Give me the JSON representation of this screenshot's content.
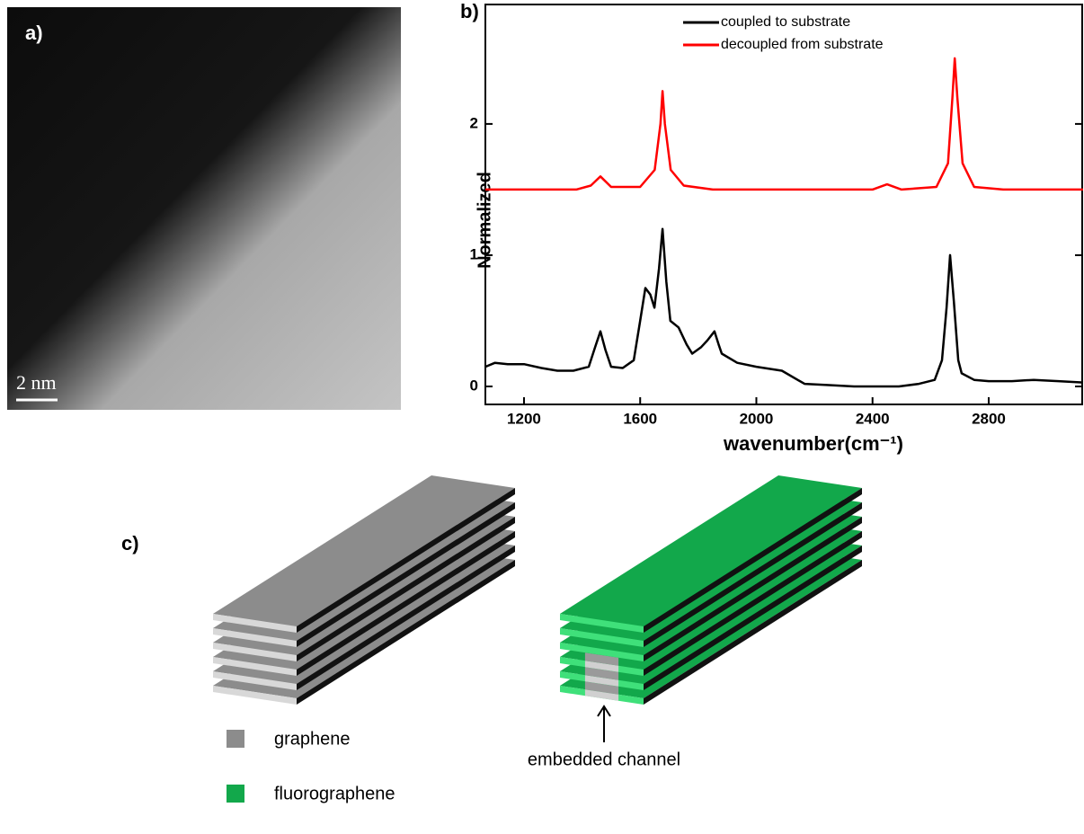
{
  "panel_a": {
    "label": "a)",
    "scale_bar": "2 nm"
  },
  "chart_data": {
    "type": "line",
    "panel_label": "b)",
    "x_label": "wavenumber(cm⁻¹)",
    "y_label": "Normalized",
    "xlim": [
      1067,
      3125
    ],
    "ylim": [
      -0.137,
      2.91
    ],
    "xticks": [
      1200,
      1600,
      2000,
      2400,
      2800
    ],
    "yticks": [
      0,
      1,
      2
    ],
    "series": [
      {
        "name": "coupled to substrate",
        "color": "#000000",
        "x": [
          1067,
          1100,
          1144,
          1200,
          1260,
          1315,
          1370,
          1423,
          1445,
          1463,
          1480,
          1500,
          1540,
          1578,
          1600,
          1618,
          1635,
          1649,
          1665,
          1677,
          1690,
          1704,
          1732,
          1760,
          1779,
          1810,
          1831,
          1856,
          1870,
          1881,
          1934,
          2000,
          2088,
          2166,
          2250,
          2336,
          2420,
          2491,
          2560,
          2614,
          2639,
          2655,
          2667,
          2680,
          2695,
          2707,
          2750,
          2800,
          2880,
          2955,
          3040,
          3125
        ],
        "values": [
          0.15,
          0.18,
          0.17,
          0.17,
          0.14,
          0.12,
          0.12,
          0.15,
          0.3,
          0.42,
          0.28,
          0.15,
          0.14,
          0.2,
          0.5,
          0.75,
          0.7,
          0.6,
          0.9,
          1.2,
          0.8,
          0.5,
          0.45,
          0.32,
          0.25,
          0.3,
          0.35,
          0.42,
          0.32,
          0.25,
          0.18,
          0.15,
          0.12,
          0.02,
          0.01,
          0.0,
          0.0,
          0.0,
          0.02,
          0.05,
          0.2,
          0.6,
          1.0,
          0.65,
          0.2,
          0.1,
          0.05,
          0.04,
          0.04,
          0.05,
          0.04,
          0.03
        ]
      },
      {
        "name": "decoupled from substrate",
        "color": "#ff0000",
        "x": [
          1067,
          1380,
          1430,
          1463,
          1500,
          1600,
          1650,
          1670,
          1677,
          1685,
          1705,
          1750,
          1850,
          2400,
          2450,
          2500,
          2620,
          2660,
          2675,
          2683,
          2692,
          2710,
          2750,
          2850,
          3125
        ],
        "values": [
          1.5,
          1.5,
          1.53,
          1.6,
          1.52,
          1.52,
          1.65,
          2.0,
          2.25,
          2.0,
          1.65,
          1.53,
          1.5,
          1.5,
          1.54,
          1.5,
          1.52,
          1.7,
          2.2,
          2.5,
          2.2,
          1.7,
          1.52,
          1.5,
          1.5
        ]
      }
    ]
  },
  "panel_c": {
    "label": "c)",
    "annotation": "embedded channel",
    "legend": [
      {
        "name": "graphene",
        "color": "#8c8c8c"
      },
      {
        "name": "fluorographene",
        "color": "#12a84b"
      }
    ]
  }
}
